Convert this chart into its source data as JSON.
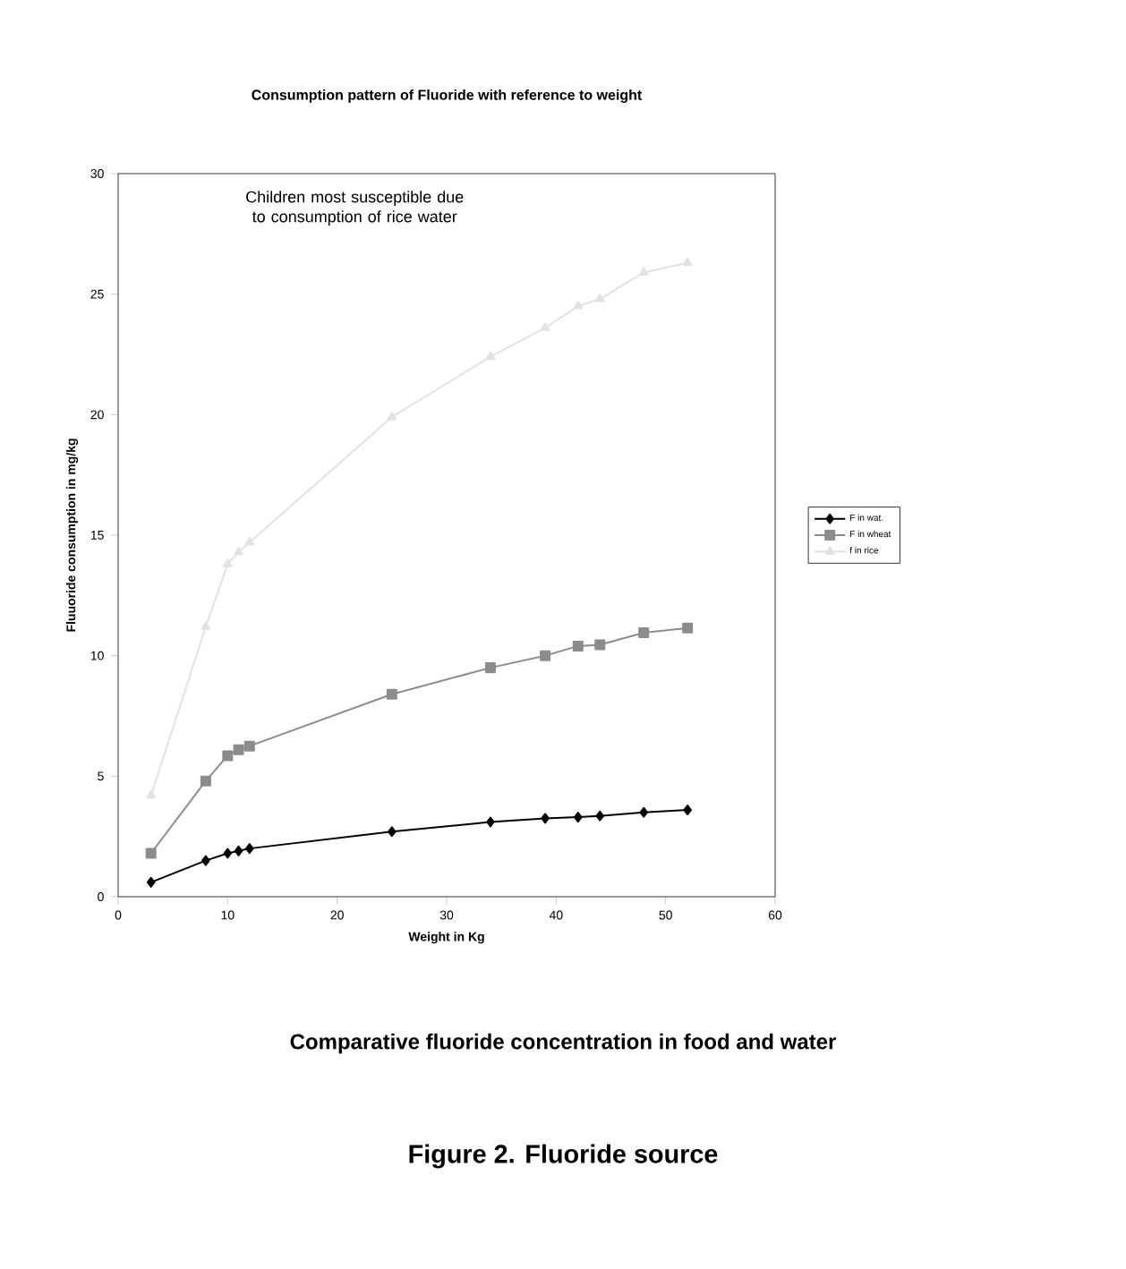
{
  "chart_data": {
    "type": "line",
    "title": "Consumption pattern of Fluoride with reference to weight",
    "xlabel": "Weight in Kg",
    "ylabel": "Fluuoride consumption in mg/kg",
    "x": [
      3,
      8,
      10,
      11,
      12,
      25,
      34,
      39,
      42,
      44,
      48,
      52
    ],
    "series": [
      {
        "name": "F in wat.",
        "color": "#000000",
        "marker": "diamond",
        "values": [
          0.6,
          1.5,
          1.8,
          1.9,
          2.0,
          2.7,
          3.1,
          3.25,
          3.3,
          3.35,
          3.5,
          3.6
        ]
      },
      {
        "name": "F in wheat",
        "color": "#8c8c8c",
        "marker": "square",
        "values": [
          1.8,
          4.8,
          5.85,
          6.1,
          6.25,
          8.4,
          9.5,
          10.0,
          10.4,
          10.45,
          10.95,
          11.15
        ]
      },
      {
        "name": "f in rice",
        "color": "#e2e2e2",
        "marker": "triangle",
        "values": [
          4.2,
          11.2,
          13.8,
          14.3,
          14.7,
          19.9,
          22.4,
          23.6,
          24.5,
          24.8,
          25.9,
          26.3
        ]
      }
    ],
    "xlim": [
      0,
      60
    ],
    "xticks": [
      0,
      10,
      20,
      30,
      40,
      50,
      60
    ],
    "ylim": [
      0,
      30
    ],
    "yticks": [
      0,
      5,
      10,
      15,
      20,
      25,
      30
    ],
    "grid": false,
    "legend": "right",
    "annotations": [
      "Children most susceptible due to consumption of rice water",
      "Comparative fluoride concentration in food and water",
      "Figure 2. Fluoride source"
    ]
  }
}
